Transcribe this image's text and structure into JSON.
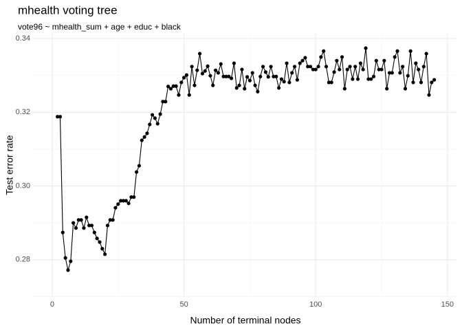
{
  "chart_data": {
    "type": "line",
    "title": "mhealth voting tree",
    "subtitle": "vote96 ~ mhealth_sum + age + educ + black",
    "x_label": "Number of terminal nodes",
    "y_label": "Test error rate",
    "color": "#000000",
    "markers": true,
    "grid": true,
    "xlim": [
      -7.3,
      153.7
    ],
    "ylim": [
      0.2699,
      0.3415
    ],
    "xticks": [
      0,
      50,
      100,
      150
    ],
    "x_minor_ticks": [
      25,
      75,
      125
    ],
    "yticks": [
      0.28,
      {
        "value": 0.3,
        "label": "0.30"
      },
      0.32,
      0.34
    ],
    "y_minor_ticks": [
      0.27,
      0.29,
      0.31,
      0.33
    ],
    "x": [
      2,
      3,
      4,
      5,
      6,
      7,
      8,
      9,
      10,
      11,
      12,
      13,
      14,
      15,
      16,
      17,
      18,
      19,
      20,
      21,
      22,
      23,
      24,
      25,
      26,
      27,
      28,
      29,
      30,
      31,
      32,
      33,
      34,
      35,
      36,
      37,
      38,
      39,
      40,
      41,
      42,
      43,
      44,
      45,
      46,
      47,
      48,
      49,
      50,
      51,
      52,
      53,
      54,
      55,
      56,
      57,
      58,
      59,
      60,
      61,
      62,
      63,
      64,
      65,
      66,
      67,
      68,
      69,
      70,
      71,
      72,
      73,
      74,
      75,
      76,
      77,
      78,
      79,
      80,
      81,
      82,
      83,
      84,
      85,
      86,
      87,
      88,
      89,
      90,
      91,
      92,
      93,
      94,
      95,
      96,
      97,
      98,
      99,
      100,
      101,
      102,
      103,
      104,
      105,
      106,
      107,
      108,
      109,
      110,
      111,
      112,
      113,
      114,
      115,
      116,
      117,
      118,
      119,
      120,
      121,
      122,
      123,
      124,
      125,
      126,
      127,
      128,
      129,
      130,
      131,
      132,
      133,
      134,
      135,
      136,
      137,
      138,
      139,
      140,
      141,
      142,
      143,
      144,
      145
    ],
    "values": [
      0.3188,
      0.3188,
      0.2874,
      0.2805,
      0.2772,
      0.2796,
      0.29,
      0.2886,
      0.2908,
      0.2908,
      0.2886,
      0.2915,
      0.2893,
      0.2893,
      0.2874,
      0.2858,
      0.2848,
      0.283,
      0.2815,
      0.2893,
      0.2908,
      0.2908,
      0.2941,
      0.2951,
      0.296,
      0.296,
      0.296,
      0.2953,
      0.297,
      0.297,
      0.3038,
      0.3055,
      0.3124,
      0.3133,
      0.3143,
      0.3167,
      0.3193,
      0.3184,
      0.3169,
      0.3195,
      0.3229,
      0.3229,
      0.327,
      0.3264,
      0.3271,
      0.3271,
      0.3247,
      0.3281,
      0.3294,
      0.3301,
      0.3247,
      0.3324,
      0.3273,
      0.3314,
      0.3359,
      0.3305,
      0.3312,
      0.3325,
      0.3299,
      0.3273,
      0.3314,
      0.3307,
      0.3331,
      0.3297,
      0.3297,
      0.3297,
      0.3292,
      0.3333,
      0.3266,
      0.3273,
      0.3316,
      0.3264,
      0.3296,
      0.3286,
      0.3307,
      0.3273,
      0.3256,
      0.3297,
      0.3324,
      0.3309,
      0.3296,
      0.3324,
      0.3297,
      0.3297,
      0.3266,
      0.329,
      0.3283,
      0.3333,
      0.3281,
      0.3307,
      0.3324,
      0.3288,
      0.3333,
      0.334,
      0.3348,
      0.3324,
      0.3324,
      0.3316,
      0.3316,
      0.3324,
      0.335,
      0.3366,
      0.3324,
      0.3281,
      0.3281,
      0.3309,
      0.334,
      0.3316,
      0.335,
      0.3264,
      0.3316,
      0.3324,
      0.329,
      0.3324,
      0.329,
      0.3333,
      0.3316,
      0.3374,
      0.329,
      0.329,
      0.3297,
      0.334,
      0.3316,
      0.3316,
      0.334,
      0.3264,
      0.3307,
      0.3307,
      0.335,
      0.3366,
      0.3307,
      0.3324,
      0.3264,
      0.3299,
      0.3366,
      0.3281,
      0.3333,
      0.3316,
      0.3281,
      0.3324,
      0.3359,
      0.3247,
      0.3281,
      0.3288
    ]
  }
}
